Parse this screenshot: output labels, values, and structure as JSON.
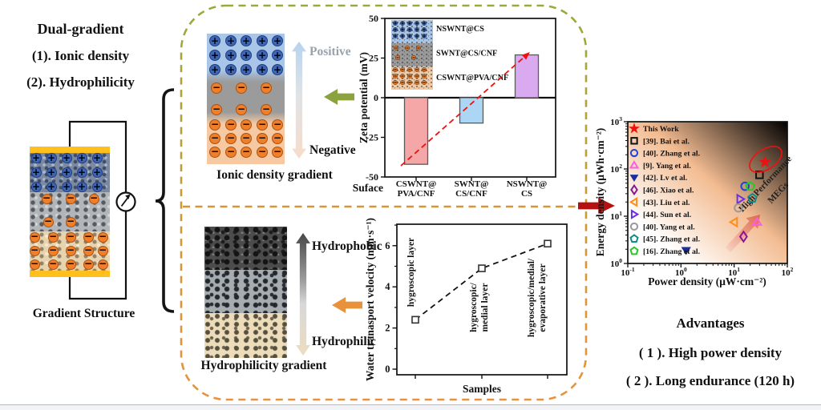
{
  "left_panel": {
    "title": "Dual-gradient",
    "item1": "(1). Ionic density",
    "item2": "(2). Hydrophilicity",
    "structure_caption": "Gradient Structure"
  },
  "ionic_panel": {
    "caption": "Ionic density gradient",
    "scale_top": "Positive",
    "scale_bottom": "Negative"
  },
  "hydro_panel": {
    "caption": "Hydrophilicity gradient",
    "scale_top": "Hydrophobic",
    "scale_bottom": "Hydrophilic"
  },
  "advantages": {
    "title": "Advantages",
    "item1": "( 1 ). High power density",
    "item2": "( 2 ). Long endurance (120 h)"
  },
  "colors": {
    "dashed_border_top": "#9aa93c",
    "dashed_border_bottom": "#e8923c",
    "divider": "#d6953a",
    "ionic_link_arrow": "#8ca23e",
    "hydro_link_arrow": "#e8923c",
    "highlight_link_arrow": "#b51111",
    "electrode": "#ffc01e",
    "positive_charge": "#3f66b5",
    "negative_charge": "#ef7f2b"
  },
  "chart_data": [
    {
      "id": "zeta-potential",
      "type": "bar",
      "ylabel": "Zeta potential (mV)",
      "xlabel": "Suface",
      "categories": [
        "CSWNT@\nPVA/CNF",
        "SWNT@\nCS/CNF",
        "NSWNT@\nCS"
      ],
      "values": [
        -42,
        -16,
        27
      ],
      "bar_colors": [
        "#f5a6a6",
        "#abd7f5",
        "#d9aaf0"
      ],
      "yticks": [
        50,
        25,
        0,
        -25,
        -50
      ],
      "ylim": [
        -50,
        50
      ],
      "grid": false,
      "trend_arrow": {
        "style": "dashed",
        "color": "#ee1111",
        "from_value": -45,
        "to_value": 27
      },
      "inset": {
        "labels": [
          "NSWNT@CS",
          "SWNT@CS/CNF",
          "CSWNT@PVA/CNF"
        ]
      }
    },
    {
      "id": "water-transport",
      "type": "line",
      "ylabel": "Water tranasport velocity (mm·s⁻¹)",
      "xlabel": "Samples",
      "x": [
        1,
        2,
        3
      ],
      "values": [
        2.4,
        4.9,
        6.1
      ],
      "point_labels": [
        [
          "hygroscopic layer"
        ],
        [
          "hygroscopic/",
          "medial layer"
        ],
        [
          "hygroscopic/medial/",
          "evaporative layer"
        ]
      ],
      "yticks": [
        0,
        2,
        4,
        6
      ],
      "ylim": [
        0,
        7.3
      ],
      "grid": false,
      "line_style": "dashed",
      "marker": "open-square"
    },
    {
      "id": "performance-comparison",
      "type": "scatter",
      "xlabel": "Power density (μW·cm⁻²)",
      "ylabel": "Energy density (μWh·cm⁻²)",
      "xscale": "log",
      "yscale": "log",
      "xlim": [
        0.1,
        100
      ],
      "ylim": [
        1,
        1000
      ],
      "x_tick_exponents": [
        -1,
        0,
        1,
        2
      ],
      "y_tick_exponents": [
        0,
        1,
        2,
        3
      ],
      "legend_position": "upper left",
      "annotation": [
        "High Performance",
        "MEGs"
      ],
      "series": [
        {
          "label": "This Work",
          "marker": "star",
          "color": "#ee1111",
          "filled": true,
          "x": 38,
          "y": 140,
          "circled": true
        },
        {
          "label": "[39]. Bai et al.",
          "marker": "square",
          "color": "#111111",
          "filled": false,
          "x": 30,
          "y": 75
        },
        {
          "label": "[40]. Zhang et al.",
          "marker": "circle",
          "color": "#1f45d8",
          "filled": false,
          "x": 16,
          "y": 43
        },
        {
          "label": "[9]. Yang et al.",
          "marker": "triangle-up",
          "color": "#fb5fd9",
          "filled": false,
          "x": 27,
          "y": 7.5
        },
        {
          "label": "[42]. Lv et al.",
          "marker": "triangle-down",
          "color": "#1c2f9c",
          "filled": true,
          "x": 1.25,
          "y": 1.9
        },
        {
          "label": "[46]. Xiao et al.",
          "marker": "diamond",
          "color": "#8c1390",
          "filled": false,
          "x": 15,
          "y": 3.7
        },
        {
          "label": "[43]. Liu et al.",
          "marker": "triangle-left",
          "color": "#ff8c19",
          "filled": false,
          "x": 10,
          "y": 7.5
        },
        {
          "label": "[44]. Sun et al.",
          "marker": "triangle-right",
          "color": "#6a30e8",
          "filled": false,
          "x": 13,
          "y": 23
        },
        {
          "label": "[40]. Yang et al.",
          "marker": "circle",
          "color": "#9a9a9a",
          "filled": false,
          "x": 12,
          "y": 15
        },
        {
          "label": "[45]. Zhang et al.",
          "marker": "pentagon",
          "color": "#0e8b8b",
          "filled": false,
          "x": 22,
          "y": 24
        },
        {
          "label": "[16]. Zhang et al.",
          "marker": "pentagon",
          "color": "#29c829",
          "filled": false,
          "x": 20,
          "y": 43
        }
      ]
    }
  ]
}
